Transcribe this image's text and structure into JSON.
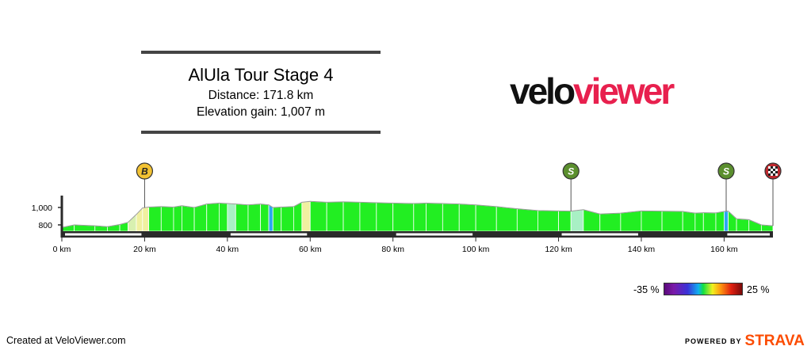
{
  "header": {
    "title": "AlUla Tour Stage 4",
    "distance_text": "Distance: 171.8 km",
    "elevation_text": "Elevation gain: 1,007 m"
  },
  "logo": {
    "part1": "velo",
    "part2": "viewer"
  },
  "legend": {
    "min_label": "-35 %",
    "max_label": "25 %"
  },
  "footer": {
    "created": "Created at VeloViewer.com",
    "powered_by": "POWERED BY",
    "strava": "STRAVA"
  },
  "colors": {
    "gradient_flat": "#22ee22",
    "gradient_light": "#a8f0c4",
    "gradient_yellow": "#f0f0a0",
    "gradient_blue": "#2aa8f0",
    "bonus_marker": "#f2c233",
    "sprint_marker": "#5b8f2e",
    "finish_marker": "#c0282e",
    "logo_accent": "#e8204e",
    "strava": "#fc4c02"
  },
  "chart_data": {
    "type": "area",
    "xlim": [
      0,
      171.8
    ],
    "ylim": [
      700,
      1100
    ],
    "x_ticks": [
      {
        "value": 0,
        "label": "0 km"
      },
      {
        "value": 20,
        "label": "20 km"
      },
      {
        "value": 40,
        "label": "40 km"
      },
      {
        "value": 60,
        "label": "60 km"
      },
      {
        "value": 80,
        "label": "80 km"
      },
      {
        "value": 100,
        "label": "100 km"
      },
      {
        "value": 120,
        "label": "120 km"
      },
      {
        "value": 140,
        "label": "140 km"
      },
      {
        "value": 160,
        "label": "160 km"
      }
    ],
    "y_ticks": [
      {
        "value": 800,
        "label": "800"
      },
      {
        "value": 1000,
        "label": "1,000"
      }
    ],
    "profile": [
      {
        "km": 0,
        "elev": 770,
        "color": "#22ee22"
      },
      {
        "km": 3,
        "elev": 800,
        "color": "#22ee22"
      },
      {
        "km": 8,
        "elev": 790,
        "color": "#22ee22"
      },
      {
        "km": 11,
        "elev": 780,
        "color": "#22ee22"
      },
      {
        "km": 14,
        "elev": 805,
        "color": "#22ee22"
      },
      {
        "km": 16,
        "elev": 830,
        "color": "#d8f0b0"
      },
      {
        "km": 18,
        "elev": 920,
        "color": "#f0f0a0"
      },
      {
        "km": 19.5,
        "elev": 995,
        "color": "#f0f0a0"
      },
      {
        "km": 21,
        "elev": 1005,
        "color": "#22ee22"
      },
      {
        "km": 24,
        "elev": 1010,
        "color": "#22ee22"
      },
      {
        "km": 27,
        "elev": 1005,
        "color": "#22ee22"
      },
      {
        "km": 29,
        "elev": 1020,
        "color": "#22ee22"
      },
      {
        "km": 32,
        "elev": 1000,
        "color": "#22ee22"
      },
      {
        "km": 35,
        "elev": 1040,
        "color": "#22ee22"
      },
      {
        "km": 38,
        "elev": 1050,
        "color": "#22ee22"
      },
      {
        "km": 40,
        "elev": 1045,
        "color": "#a8f0c4"
      },
      {
        "km": 42,
        "elev": 1040,
        "color": "#22ee22"
      },
      {
        "km": 45,
        "elev": 1030,
        "color": "#22ee22"
      },
      {
        "km": 48,
        "elev": 1040,
        "color": "#22ee22"
      },
      {
        "km": 50,
        "elev": 1030,
        "color": "#2aa8f0"
      },
      {
        "km": 51,
        "elev": 1000,
        "color": "#22ee22"
      },
      {
        "km": 53,
        "elev": 1005,
        "color": "#22ee22"
      },
      {
        "km": 56,
        "elev": 1010,
        "color": "#22ee22"
      },
      {
        "km": 58,
        "elev": 1060,
        "color": "#f0f0a0"
      },
      {
        "km": 60,
        "elev": 1070,
        "color": "#22ee22"
      },
      {
        "km": 64,
        "elev": 1060,
        "color": "#22ee22"
      },
      {
        "km": 68,
        "elev": 1065,
        "color": "#22ee22"
      },
      {
        "km": 72,
        "elev": 1060,
        "color": "#22ee22"
      },
      {
        "km": 76,
        "elev": 1055,
        "color": "#22ee22"
      },
      {
        "km": 80,
        "elev": 1050,
        "color": "#22ee22"
      },
      {
        "km": 85,
        "elev": 1045,
        "color": "#22ee22"
      },
      {
        "km": 88,
        "elev": 1050,
        "color": "#22ee22"
      },
      {
        "km": 92,
        "elev": 1045,
        "color": "#22ee22"
      },
      {
        "km": 96,
        "elev": 1040,
        "color": "#22ee22"
      },
      {
        "km": 100,
        "elev": 1030,
        "color": "#22ee22"
      },
      {
        "km": 105,
        "elev": 1010,
        "color": "#22ee22"
      },
      {
        "km": 110,
        "elev": 985,
        "color": "#22ee22"
      },
      {
        "km": 115,
        "elev": 965,
        "color": "#22ee22"
      },
      {
        "km": 120,
        "elev": 960,
        "color": "#22ee22"
      },
      {
        "km": 123,
        "elev": 958,
        "color": "#a8f0c4"
      },
      {
        "km": 126,
        "elev": 975,
        "color": "#22ee22"
      },
      {
        "km": 130,
        "elev": 925,
        "color": "#22ee22"
      },
      {
        "km": 135,
        "elev": 935,
        "color": "#22ee22"
      },
      {
        "km": 140,
        "elev": 960,
        "color": "#22ee22"
      },
      {
        "km": 145,
        "elev": 958,
        "color": "#22ee22"
      },
      {
        "km": 150,
        "elev": 955,
        "color": "#22ee22"
      },
      {
        "km": 153,
        "elev": 935,
        "color": "#22ee22"
      },
      {
        "km": 155,
        "elev": 940,
        "color": "#22ee22"
      },
      {
        "km": 158,
        "elev": 938,
        "color": "#22ee22"
      },
      {
        "km": 160,
        "elev": 955,
        "color": "#2aa8f0"
      },
      {
        "km": 161,
        "elev": 958,
        "color": "#22ee22"
      },
      {
        "km": 163,
        "elev": 870,
        "color": "#22ee22"
      },
      {
        "km": 166,
        "elev": 860,
        "color": "#22ee22"
      },
      {
        "km": 169,
        "elev": 800,
        "color": "#22ee22"
      },
      {
        "km": 171.8,
        "elev": 790,
        "color": "#22ee22"
      }
    ],
    "markers": [
      {
        "km": 20,
        "symbol": "B",
        "type": "bonus"
      },
      {
        "km": 123,
        "symbol": "S",
        "type": "sprint"
      },
      {
        "km": 160.5,
        "symbol": "S",
        "type": "sprint"
      },
      {
        "km": 171.8,
        "symbol": "",
        "type": "finish"
      }
    ]
  }
}
